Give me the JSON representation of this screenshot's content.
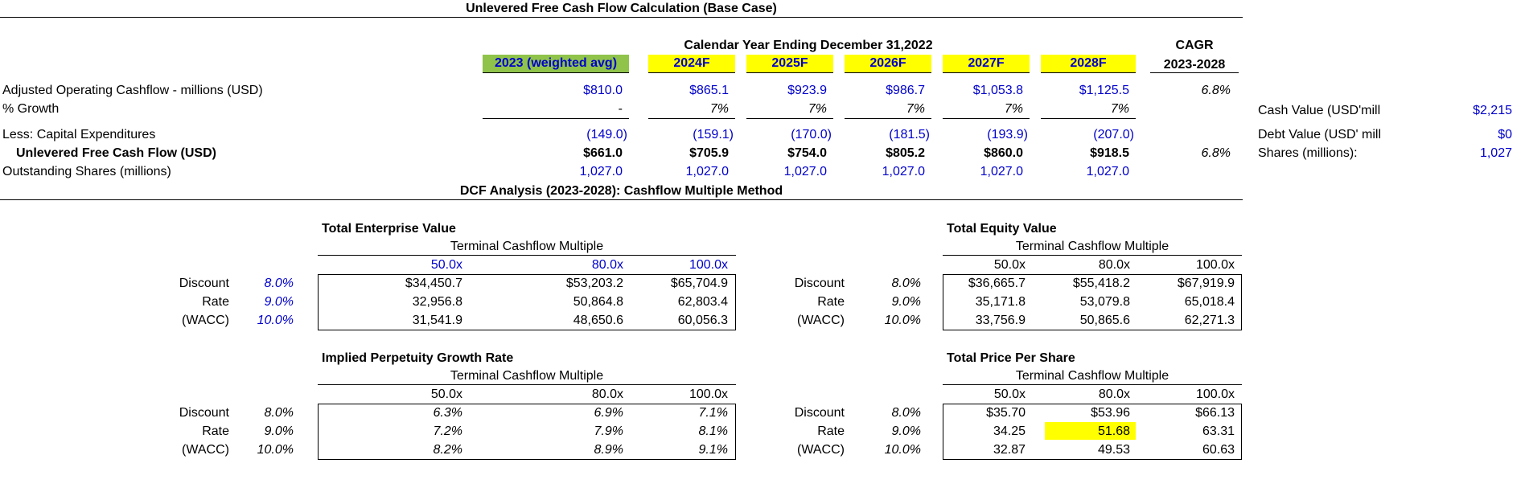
{
  "main_title": "Unlevered Free Cash Flow Calculation (Base Case)",
  "calendar_header": "Calendar Year Ending December 31,2022",
  "cagr": {
    "label": "CAGR",
    "range": "2023-2028"
  },
  "years": [
    "2023 (weighted avg)",
    "2024F",
    "2025F",
    "2026F",
    "2027F",
    "2028F"
  ],
  "rows": {
    "adj_op_cf": {
      "label": "Adjusted Operating Cashflow - millions (USD)",
      "values": [
        "$810.0",
        "$865.1",
        "$923.9",
        "$986.7",
        "$1,053.8",
        "$1,125.5"
      ],
      "cagr": "6.8%"
    },
    "growth": {
      "label": "% Growth",
      "values": [
        "-",
        "7%",
        "7%",
        "7%",
        "7%",
        "7%"
      ]
    },
    "capex": {
      "label": "Less: Capital Expenditures",
      "values": [
        "(149.0)",
        "(159.1)",
        "(170.0)",
        "(181.5)",
        "(193.9)",
        "(207.0)"
      ]
    },
    "ufcf": {
      "label": "Unlevered Free Cash Flow (USD)",
      "values": [
        "$661.0",
        "$705.9",
        "$754.0",
        "$805.2",
        "$860.0",
        "$918.5"
      ],
      "cagr": "6.8%"
    },
    "shares": {
      "label": "Outstanding Shares (millions)",
      "values": [
        "1,027.0",
        "1,027.0",
        "1,027.0",
        "1,027.0",
        "1,027.0",
        "1,027.0"
      ]
    }
  },
  "side": {
    "cash": {
      "label": "Cash Value (USD'mill",
      "value": "$2,215"
    },
    "debt": {
      "label": "Debt Value (USD' mill",
      "value": "$0"
    },
    "shares": {
      "label": "Shares (millions):",
      "value": "1,027"
    }
  },
  "dcf_title": "DCF Analysis (2023-2028):  Cashflow Multiple Method",
  "rate_labels": [
    "Discount",
    "Rate",
    "(WACC)"
  ],
  "rates": [
    "8.0%",
    "9.0%",
    "10.0%"
  ],
  "multiple_label": "Terminal Cashflow Multiple",
  "multiples": [
    "50.0x",
    "80.0x",
    "100.0x"
  ],
  "tev": {
    "title": "Total Enterprise Value",
    "cells": [
      [
        "$34,450.7",
        "$53,203.2",
        "$65,704.9"
      ],
      [
        "32,956.8",
        "50,864.8",
        "62,803.4"
      ],
      [
        "31,541.9",
        "48,650.6",
        "60,056.3"
      ]
    ]
  },
  "teq": {
    "title": "Total Equity Value",
    "cells": [
      [
        "$36,665.7",
        "$55,418.2",
        "$67,919.9"
      ],
      [
        "35,171.8",
        "53,079.8",
        "65,018.4"
      ],
      [
        "33,756.9",
        "50,865.6",
        "62,271.3"
      ]
    ]
  },
  "ipg": {
    "title": "Implied Perpetuity Growth Rate",
    "cells": [
      [
        "6.3%",
        "6.9%",
        "7.1%"
      ],
      [
        "7.2%",
        "7.9%",
        "8.1%"
      ],
      [
        "8.2%",
        "8.9%",
        "9.1%"
      ]
    ]
  },
  "tps": {
    "title": "Total Price Per Share",
    "cells": [
      [
        "$35.70",
        "$53.96",
        "$66.13"
      ],
      [
        "34.25",
        "51.68",
        "63.31"
      ],
      [
        "32.87",
        "49.53",
        "60.63"
      ]
    ]
  },
  "colors": {
    "highlight": "#ffff00",
    "green": "#8fc34a",
    "input_blue": "#0000cc"
  }
}
